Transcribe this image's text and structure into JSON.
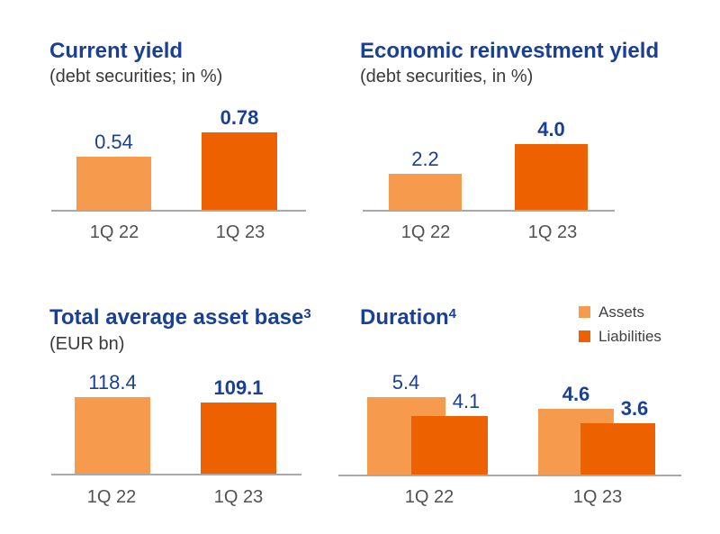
{
  "colors": {
    "background": "#FFFFFF",
    "title_blue": "#1A4096",
    "value_blue": "#1A4096",
    "bar_assets_light": "#F69A4D",
    "bar_liabilities_dark": "#EE6100",
    "subtitle_gray": "#3A3A3A",
    "tick_gray": "#515151",
    "legend_gray": "#3F3F3F",
    "axis_gray": "#A9A9A9"
  },
  "chart_data": [
    {
      "type": "bar",
      "title": "Current yield",
      "title_superscript": "",
      "subtitle": "(debt securities; in %)",
      "categories": [
        "1Q 22",
        "1Q 23"
      ],
      "values": [
        0.54,
        0.78
      ],
      "value_labels": [
        "0.54",
        "0.78"
      ],
      "value_label_bold": [
        false,
        true
      ],
      "bar_palette": [
        "assets_light",
        "liabilities_dark"
      ],
      "xlabel": "",
      "ylabel": "",
      "ylim": [
        0,
        0.9
      ],
      "grid": false,
      "legend": null
    },
    {
      "type": "bar",
      "title": "Economic reinvestment yield",
      "title_superscript": "",
      "subtitle": "(debt securities, in %)",
      "categories": [
        "1Q 22",
        "1Q 23"
      ],
      "values": [
        2.2,
        4.0
      ],
      "value_labels": [
        "2.2",
        "4.0"
      ],
      "value_label_bold": [
        false,
        true
      ],
      "bar_palette": [
        "assets_light",
        "liabilities_dark"
      ],
      "xlabel": "",
      "ylabel": "",
      "ylim": [
        0,
        4.5
      ],
      "grid": false,
      "legend": null
    },
    {
      "type": "bar",
      "title": "Total average asset base",
      "title_superscript": "3",
      "subtitle": "(EUR bn)",
      "categories": [
        "1Q 22",
        "1Q 23"
      ],
      "values": [
        118.4,
        109.1
      ],
      "value_labels": [
        "118.4",
        "109.1"
      ],
      "value_label_bold": [
        false,
        true
      ],
      "bar_palette": [
        "assets_light",
        "liabilities_dark"
      ],
      "xlabel": "",
      "ylabel": "",
      "ylim": [
        0,
        130
      ],
      "grid": false,
      "legend": null
    },
    {
      "type": "grouped_bar",
      "title": "Duration",
      "title_superscript": "4",
      "subtitle": "",
      "categories": [
        "1Q 22",
        "1Q 23"
      ],
      "series": [
        {
          "name": "Assets",
          "palette": "assets_light",
          "values": [
            5.4,
            4.6
          ],
          "value_labels": [
            "5.4",
            "4.6"
          ]
        },
        {
          "name": "Liabilities",
          "palette": "liabilities_dark",
          "values": [
            4.1,
            3.6
          ],
          "value_labels": [
            "4.1",
            "3.6"
          ]
        }
      ],
      "value_label_bold": [
        false,
        true
      ],
      "xlabel": "",
      "ylabel": "",
      "ylim": [
        0,
        6
      ],
      "grid": false,
      "legend": {
        "position": "top-right",
        "items": [
          "Assets",
          "Liabilities"
        ]
      }
    }
  ]
}
